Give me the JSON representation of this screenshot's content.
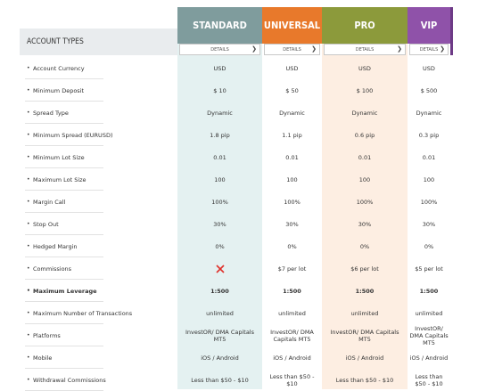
{
  "table": {
    "title": "ACCOUNT TYPES",
    "details": "DETAILS",
    "columns": [
      {
        "name": "STANDARD",
        "color": "#7f9c9d",
        "bg": "#e4f1f1"
      },
      {
        "name": "UNIVERSAL",
        "color": "#e8792b",
        "bg": "#ffffff"
      },
      {
        "name": "PRO",
        "color": "#8c9a3b",
        "bg": "#fdeee2"
      },
      {
        "name": "VIP",
        "color": "#8f52a9",
        "bg": "#ffffff"
      }
    ],
    "rows": [
      {
        "label": "Account Currency",
        "cells": [
          "USD",
          "USD",
          "USD",
          "USD"
        ]
      },
      {
        "label": "Minimum Deposit",
        "cells": [
          "$ 10",
          "$ 50",
          "$ 100",
          "$ 500"
        ]
      },
      {
        "label": "Spread Type",
        "cells": [
          "Dynamic",
          "Dynamic",
          "Dynamic",
          "Dynamic"
        ]
      },
      {
        "label": "Minimum Spread (EURUSD)",
        "cells": [
          "1.8 pip",
          "1.1 pip",
          "0.6 pip",
          "0.3 pip"
        ]
      },
      {
        "label": "Minimum Lot Size",
        "cells": [
          "0.01",
          "0.01",
          "0.01",
          "0.01"
        ]
      },
      {
        "label": "Maximum Lot Size",
        "cells": [
          "100",
          "100",
          "100",
          "100"
        ]
      },
      {
        "label": "Margin Call",
        "cells": [
          "100%",
          "100%",
          "100%",
          "100%"
        ]
      },
      {
        "label": "Stop Out",
        "cells": [
          "30%",
          "30%",
          "30%",
          "30%"
        ]
      },
      {
        "label": "Hedged Margin",
        "cells": [
          "0%",
          "0%",
          "0%",
          "0%"
        ]
      },
      {
        "label": "Commissions",
        "cells": [
          null,
          "$7 per lot",
          "$6 per lot",
          "$5 per lot"
        ]
      },
      {
        "label": "Maximum Leverage",
        "cells": [
          "1:500",
          "1:500",
          "1:500",
          "1:500"
        ],
        "bold": true
      },
      {
        "label": "Maximum Number of Transactions",
        "cells": [
          "unlimited",
          "unlimited",
          "unlimited",
          "unlimited"
        ]
      },
      {
        "label": "Platforms",
        "cells": [
          "InvestOR/ DMA Capitals MT5",
          "InvestOR/ DMA Capitals MT5",
          "InvestOR/ DMA Capitals MT5",
          "InvestOR/ DMA Capitals MT5"
        ]
      },
      {
        "label": "Mobile",
        "cells": [
          "iOS / Android",
          "iOS / Android",
          "iOS / Android",
          "iOS / Android"
        ]
      },
      {
        "label": "Withdrawal Commissions",
        "cells": [
          "Less than $50 - $10",
          "Less than $50 - $10",
          "Less than $50 - $10",
          "Less than $50 - $10"
        ]
      }
    ]
  }
}
